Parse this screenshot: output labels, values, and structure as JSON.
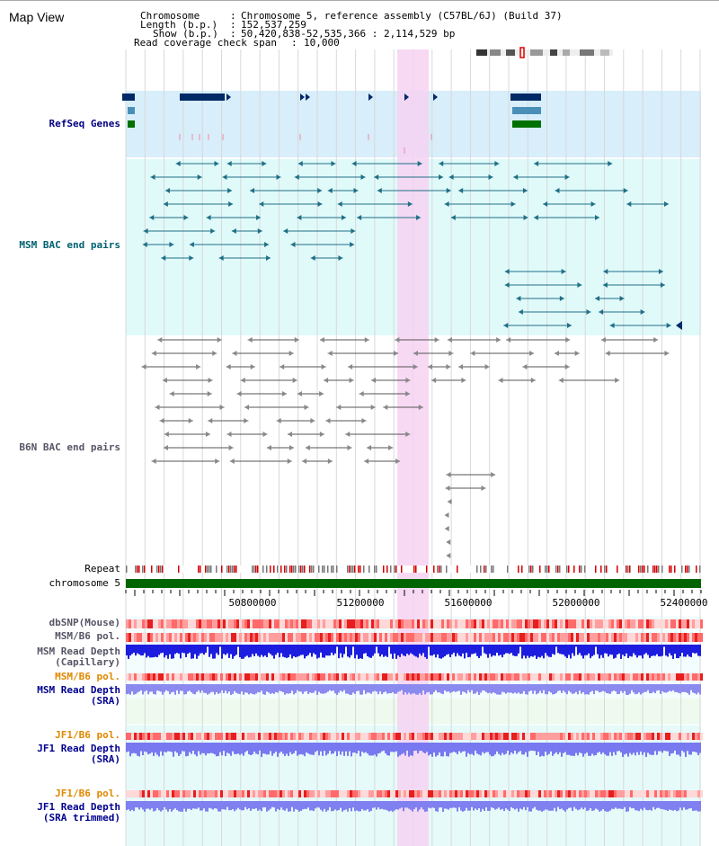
{
  "title": "Map View",
  "info": {
    "chromosome_key": "Chromosome",
    "chromosome_val": "Chromosome 5, reference assembly (C57BL/6J) (Build 37)",
    "length_key": "Length (b.p.)",
    "length_val": "152,537,259",
    "show_key": "Show (b.p.)",
    "show_val": "50,420,838-52,535,366 : 2,114,529 bp",
    "coverage_key": "Read coverage check span",
    "coverage_val": "10,000"
  },
  "tracks": {
    "refseq": "RefSeq Genes",
    "msm_bac": "MSM BAC end pairs",
    "b6n_bac": "B6N BAC end pairs",
    "repeat": "Repeat",
    "chromosome": "chromosome 5",
    "dbsnp": "dbSNP(Mouse)",
    "msm_pol": "MSM/B6 pol.",
    "msm_depth_cap_1": "MSM Read Depth",
    "msm_depth_cap_2": "(Capillary)",
    "msm_pol2": "MSM/B6 pol.",
    "msm_depth_sra_1": "MSM Read Depth",
    "msm_depth_sra_2": "(SRA)",
    "jf1_pol": "JF1/B6 pol.",
    "jf1_depth_1": "JF1 Read Depth",
    "jf1_depth_2": "(SRA)",
    "jf1_pol2": "JF1/B6 pol.",
    "jf1_depth_trim_1": "JF1 Read Depth",
    "jf1_depth_trim_2": "(SRA trimmed)"
  },
  "axis": {
    "ticks": [
      "50800000",
      "51200000",
      "51600000",
      "52000000",
      "52400000"
    ]
  },
  "colors": {
    "highlight": "#f6d2f2",
    "refseq_bg": "#d8eefa",
    "msm_bg": "#e0fafa",
    "gene_dark": "#002a66",
    "gene_mid": "#4a8fb8",
    "gene_green": "#007000",
    "chrom_green": "#006400",
    "msm_pair": "#1f6f86",
    "b6n_pair": "#555555"
  }
}
